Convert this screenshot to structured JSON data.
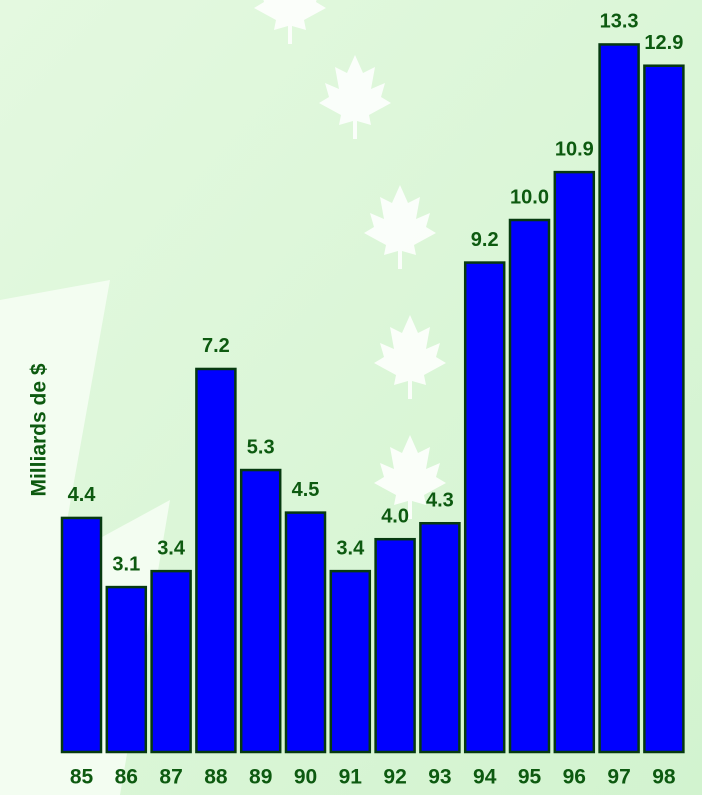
{
  "chart_data": {
    "type": "bar",
    "y_label": "Milliards de $",
    "categories": [
      "85",
      "86",
      "87",
      "88",
      "89",
      "90",
      "91",
      "92",
      "93",
      "94",
      "95",
      "96",
      "97",
      "98"
    ],
    "values": [
      4.4,
      3.1,
      3.4,
      7.2,
      5.3,
      4.5,
      3.4,
      4.0,
      4.3,
      9.2,
      10.0,
      10.9,
      13.3,
      12.9
    ],
    "value_labels": [
      "4.4",
      "3.1",
      "3.4",
      "7.2",
      "5.3",
      "4.5",
      "3.4",
      "4.0",
      "4.3",
      "9.2",
      "10.0",
      "10.9",
      "13.3",
      "12.9"
    ],
    "color": "#0000ff"
  }
}
